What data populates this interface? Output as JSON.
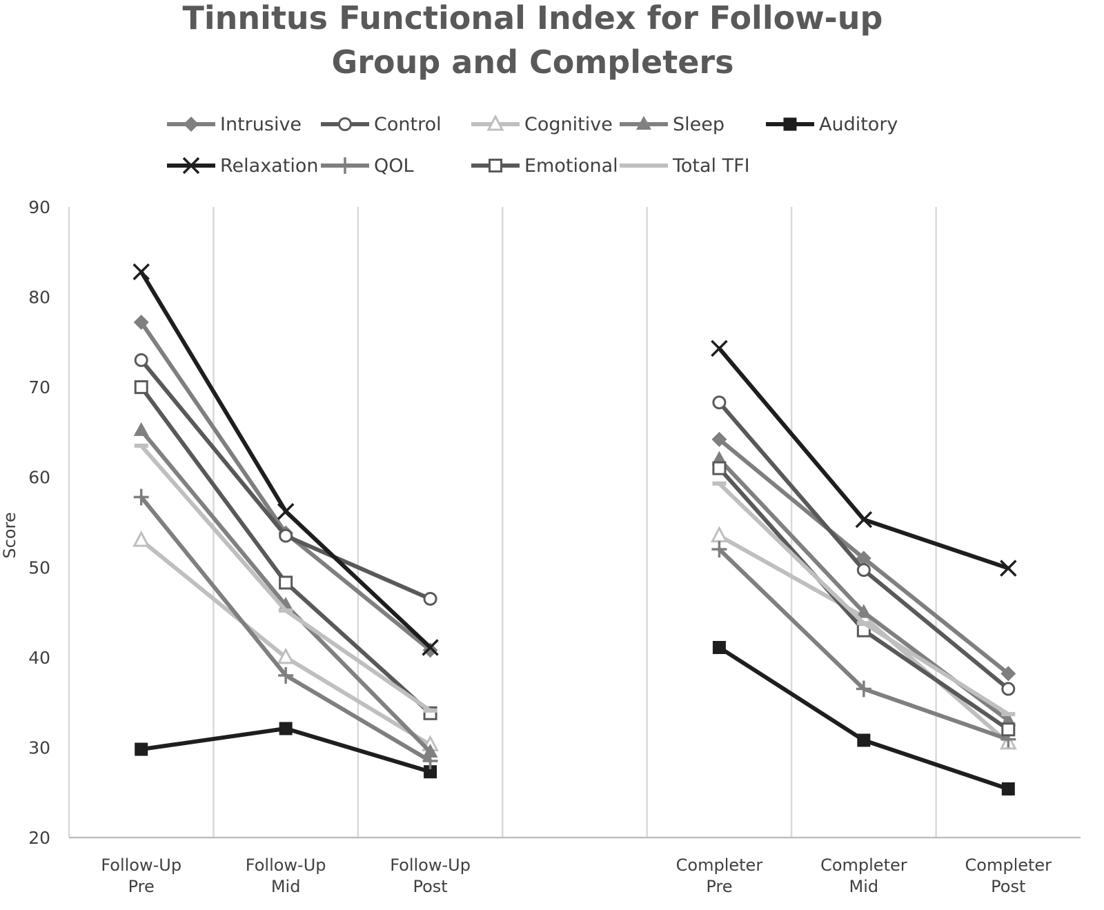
{
  "chart_data": {
    "type": "line",
    "title": "Tinnitus Functional Index for Follow-up Group and Completers",
    "title_lines": [
      "Tinnitus Functional Index for Follow-up",
      "Group and Completers"
    ],
    "xlabel": "",
    "ylabel": "Score",
    "ylim": [
      20,
      90
    ],
    "yticks": [
      20,
      30,
      40,
      50,
      60,
      70,
      80,
      90
    ],
    "categories": [
      [
        "Follow-Up",
        "Pre"
      ],
      [
        "Follow-Up",
        "Mid"
      ],
      [
        "Follow-Up",
        "Post"
      ],
      [
        "",
        ""
      ],
      [
        "Completer",
        "Pre"
      ],
      [
        "Completer",
        "Mid"
      ],
      [
        "Completer",
        "Post"
      ]
    ],
    "grid": {
      "vertical": true,
      "horizontal": false
    },
    "legend_position": "top",
    "series": [
      {
        "name": "Intrusive",
        "marker": "diamond",
        "color": "#7f7f7f",
        "values": [
          77.2,
          53.8,
          40.8,
          null,
          64.2,
          51,
          38.2
        ]
      },
      {
        "name": "Control",
        "marker": "circle-open",
        "color": "#595959",
        "values": [
          73,
          53.5,
          46.5,
          null,
          68.3,
          49.7,
          36.5
        ]
      },
      {
        "name": "Cognitive",
        "marker": "triangle-open",
        "color": "#bfbfbf",
        "values": [
          53,
          40,
          30.3,
          null,
          53.5,
          44.5,
          30.5
        ]
      },
      {
        "name": "Sleep",
        "marker": "triangle",
        "color": "#808080",
        "values": [
          65.2,
          45.8,
          29.5,
          null,
          62,
          45,
          33
        ]
      },
      {
        "name": "Auditory",
        "marker": "square",
        "color": "#1e1e1e",
        "values": [
          29.8,
          32.1,
          27.3,
          null,
          41.1,
          30.8,
          25.4
        ]
      },
      {
        "name": "Relaxation",
        "marker": "x",
        "color": "#1e1e1e",
        "values": [
          82.8,
          56.2,
          41.1,
          null,
          74.3,
          55.3,
          49.9
        ]
      },
      {
        "name": "QOL",
        "marker": "plus",
        "color": "#7f7f7f",
        "values": [
          57.8,
          38,
          28.5,
          null,
          52,
          36.5,
          30.9
        ]
      },
      {
        "name": "Emotional",
        "marker": "square-open",
        "color": "#595959",
        "values": [
          70,
          48.3,
          33.8,
          null,
          61,
          43,
          32
        ]
      },
      {
        "name": "Total TFI",
        "marker": "dash",
        "color": "#bfbfbf",
        "values": [
          63.5,
          45.2,
          34.1,
          null,
          59.3,
          43.8,
          33.7
        ]
      }
    ]
  }
}
